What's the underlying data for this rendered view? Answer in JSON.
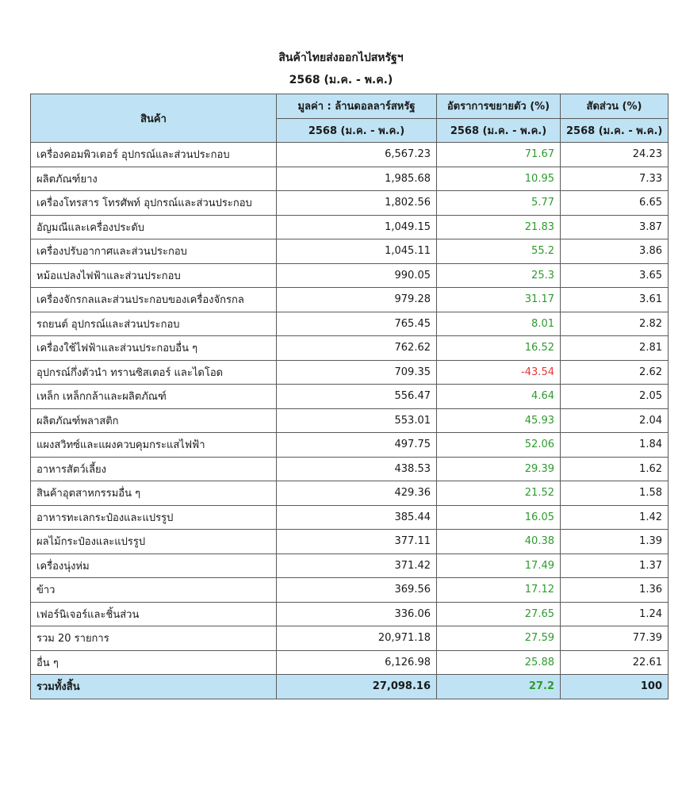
{
  "header": {
    "title": "สินค้าไทยส่งออกไปสหรัฐฯ",
    "subtitle": "2568 (ม.ค. - พ.ค.)"
  },
  "table": {
    "columns": [
      "สินค้า",
      "มูลค่า : ล้านดอลลาร์สหรัฐ",
      "อัตราการขยายตัว (%)",
      "สัดส่วน (%)"
    ],
    "subheaders": [
      "2568 (ม.ค. - พ.ค.)",
      "2568 (ม.ค. - พ.ค.)",
      "2568 (ม.ค. - พ.ค.)"
    ],
    "rows": [
      [
        "เครื่องคอมพิวเตอร์ อุปกรณ์และส่วนประกอบ",
        "6,567.23",
        "71.67",
        "24.23"
      ],
      [
        "ผลิตภัณฑ์ยาง",
        "1,985.68",
        "10.95",
        "7.33"
      ],
      [
        "เครื่องโทรสาร โทรศัพท์ อุปกรณ์และส่วนประกอบ",
        "1,802.56",
        "5.77",
        "6.65"
      ],
      [
        "อัญมณีและเครื่องประดับ",
        "1,049.15",
        "21.83",
        "3.87"
      ],
      [
        "เครื่องปรับอากาศและส่วนประกอบ",
        "1,045.11",
        "55.2",
        "3.86"
      ],
      [
        "หม้อแปลงไฟฟ้าและส่วนประกอบ",
        "990.05",
        "25.3",
        "3.65"
      ],
      [
        "เครื่องจักรกลและส่วนประกอบของเครื่องจักรกล",
        "979.28",
        "31.17",
        "3.61"
      ],
      [
        "รถยนต์ อุปกรณ์และส่วนประกอบ",
        "765.45",
        "8.01",
        "2.82"
      ],
      [
        "เครื่องใช้ไฟฟ้าและส่วนประกอบอื่น ๆ",
        "762.62",
        "16.52",
        "2.81"
      ],
      [
        "อุปกรณ์กึ่งตัวนำ ทรานซิสเตอร์ และไดโอด",
        "709.35",
        "-43.54",
        "2.62"
      ],
      [
        "เหล็ก เหล็กกล้าและผลิตภัณฑ์",
        "556.47",
        "4.64",
        "2.05"
      ],
      [
        "ผลิตภัณฑ์พลาสติก",
        "553.01",
        "45.93",
        "2.04"
      ],
      [
        "แผงสวิทซ์และแผงควบคุมกระแสไฟฟ้า",
        "497.75",
        "52.06",
        "1.84"
      ],
      [
        "อาหารสัตว์เลี้ยง",
        "438.53",
        "29.39",
        "1.62"
      ],
      [
        "สินค้าอุตสาหกรรมอื่น ๆ",
        "429.36",
        "21.52",
        "1.58"
      ],
      [
        "อาหารทะเลกระป๋องและแปรรูป",
        "385.44",
        "16.05",
        "1.42"
      ],
      [
        "ผลไม้กระป๋องและแปรรูป",
        "377.11",
        "40.38",
        "1.39"
      ],
      [
        "เครื่องนุ่งห่ม",
        "371.42",
        "17.49",
        "1.37"
      ],
      [
        "ข้าว",
        "369.56",
        "17.12",
        "1.36"
      ],
      [
        "เฟอร์นิเจอร์และชิ้นส่วน",
        "336.06",
        "27.65",
        "1.24"
      ],
      [
        "รวม 20 รายการ",
        "20,971.18",
        "27.59",
        "77.39"
      ],
      [
        "อื่น ๆ",
        "6,126.98",
        "25.88",
        "22.61"
      ]
    ],
    "total": [
      "รวมทั้งสิ้น",
      "27,098.16",
      "27.2",
      "100"
    ]
  }
}
